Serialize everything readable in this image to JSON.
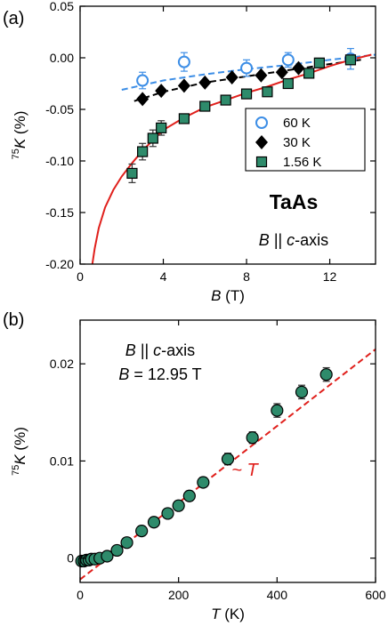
{
  "chart_data": [
    {
      "panel_label": "(a)",
      "type": "scatter",
      "xlabel": {
        "var": "B",
        "unit": "(T)"
      },
      "ylabel": {
        "sup": "75",
        "var": "K",
        "unit": "(%)"
      },
      "xlim": [
        0,
        14.2
      ],
      "ylim": [
        -0.2,
        0.05
      ],
      "xticks": [
        0,
        4,
        8,
        12
      ],
      "yticks": [
        -0.2,
        -0.15,
        -0.1,
        -0.05,
        0.0,
        0.05
      ],
      "ytick_labels": [
        "-0.20",
        "-0.15",
        "-0.10",
        "-0.05",
        "0.00",
        "0.05"
      ],
      "title_text": "TaAs",
      "annotation": {
        "var": "B",
        "mid": " || ",
        "var2": "c",
        "rest": "-axis"
      },
      "legend_position": "right-middle",
      "series": [
        {
          "name": "60 K",
          "marker": "circle-open",
          "color": "#3d8ee6",
          "x": [
            3.0,
            5.0,
            8.0,
            10.0,
            13.0
          ],
          "y": [
            -0.022,
            -0.004,
            -0.01,
            -0.002,
            -0.001
          ],
          "err": [
            0.008,
            0.009,
            0.008,
            0.007,
            0.01
          ]
        },
        {
          "name": "30 K",
          "marker": "diamond",
          "color": "#000000",
          "x": [
            3.0,
            3.9,
            5.0,
            6.0,
            7.3,
            8.7,
            9.7,
            10.5
          ],
          "y": [
            -0.04,
            -0.032,
            -0.027,
            -0.024,
            -0.019,
            -0.017,
            -0.014,
            -0.01
          ],
          "err": [
            0,
            0,
            0,
            0,
            0,
            0,
            0,
            0
          ]
        },
        {
          "name": "1.56 K",
          "marker": "square",
          "color": "#2e8b6b",
          "x": [
            2.5,
            3.0,
            3.5,
            3.9,
            5.0,
            6.0,
            7.0,
            8.0,
            9.0,
            10.0,
            11.0,
            11.5,
            13.0
          ],
          "y": [
            -0.112,
            -0.091,
            -0.078,
            -0.068,
            -0.059,
            -0.047,
            -0.041,
            -0.035,
            -0.033,
            -0.025,
            -0.015,
            -0.005,
            -0.002
          ],
          "err": [
            0.009,
            0.008,
            0.008,
            0.007,
            0.004,
            0.004,
            0.004,
            0.004,
            0.004,
            0.004,
            0.004,
            0.003,
            0.003
          ]
        }
      ],
      "fits": [
        {
          "color": "#3d8ee6",
          "style": "dashed",
          "x": [
            2.0,
            4.0,
            6.0,
            8.0,
            10.0,
            12.0,
            14.2
          ],
          "y": [
            -0.031,
            -0.022,
            -0.016,
            -0.011,
            -0.007,
            -0.002,
            0.003
          ]
        },
        {
          "color": "#000000",
          "style": "dashed",
          "x": [
            2.6,
            4.0,
            6.0,
            8.0,
            10.0,
            12.0,
            13.5
          ],
          "y": [
            -0.042,
            -0.033,
            -0.024,
            -0.018,
            -0.012,
            -0.006,
            -0.002
          ]
        },
        {
          "color": "#e0201c",
          "style": "solid",
          "x": [
            0.55,
            0.7,
            0.9,
            1.2,
            1.6,
            2.0,
            2.5,
            3.0,
            3.5,
            4.0,
            5.0,
            6.0,
            7.0,
            8.0,
            9.0,
            10.0,
            11.0,
            12.0,
            13.0,
            14.0
          ],
          "y": [
            -0.205,
            -0.185,
            -0.165,
            -0.145,
            -0.128,
            -0.115,
            -0.102,
            -0.09,
            -0.08,
            -0.07,
            -0.058,
            -0.048,
            -0.041,
            -0.034,
            -0.028,
            -0.021,
            -0.015,
            -0.008,
            -0.002,
            0.003
          ]
        }
      ]
    },
    {
      "panel_label": "(b)",
      "type": "scatter",
      "xlabel": {
        "var": "T",
        "unit": "(K)"
      },
      "ylabel": {
        "sup": "75",
        "var": "K",
        "unit": "(%)"
      },
      "xlim": [
        0,
        600
      ],
      "ylim": [
        -0.0025,
        0.0245
      ],
      "xticks": [
        0,
        200,
        400,
        600
      ],
      "yticks": [
        0.0,
        0.01,
        0.02
      ],
      "ytick_labels": [
        "0",
        "0.01",
        "0.02"
      ],
      "annotation_line1": {
        "var": "B",
        "mid": " || ",
        "var2": "c",
        "rest": "-axis"
      },
      "annotation_line2": {
        "var": "B",
        "rest": " = 12.95 T"
      },
      "fit_label": "~ T",
      "series": [
        {
          "name": "",
          "marker": "circle",
          "color": "#2e8b6b",
          "x": [
            3,
            8,
            13,
            18,
            23,
            30,
            40,
            55,
            75,
            95,
            125,
            150,
            178,
            200,
            222,
            250,
            300,
            350,
            400,
            450,
            500
          ],
          "y": [
            -0.0003,
            -0.0003,
            -0.0002,
            -0.0002,
            -0.0001,
            -0.0001,
            0.0,
            0.0002,
            0.0008,
            0.0016,
            0.0028,
            0.0037,
            0.0046,
            0.0054,
            0.0064,
            0.0078,
            0.0102,
            0.0124,
            0.0152,
            0.0171,
            0.0189
          ],
          "err": [
            0.0004,
            0.0004,
            0.0004,
            0.0004,
            0.0004,
            0.0004,
            0.0004,
            0.0004,
            0.0005,
            0.0005,
            0.0005,
            0.0005,
            0.0005,
            0.0005,
            0.0005,
            0.0005,
            0.0006,
            0.0006,
            0.0007,
            0.0007,
            0.0007
          ]
        }
      ],
      "fits": [
        {
          "color": "#e0201c",
          "style": "dashed",
          "x": [
            0,
            600
          ],
          "y": [
            -0.0022,
            0.0215
          ]
        }
      ]
    }
  ]
}
